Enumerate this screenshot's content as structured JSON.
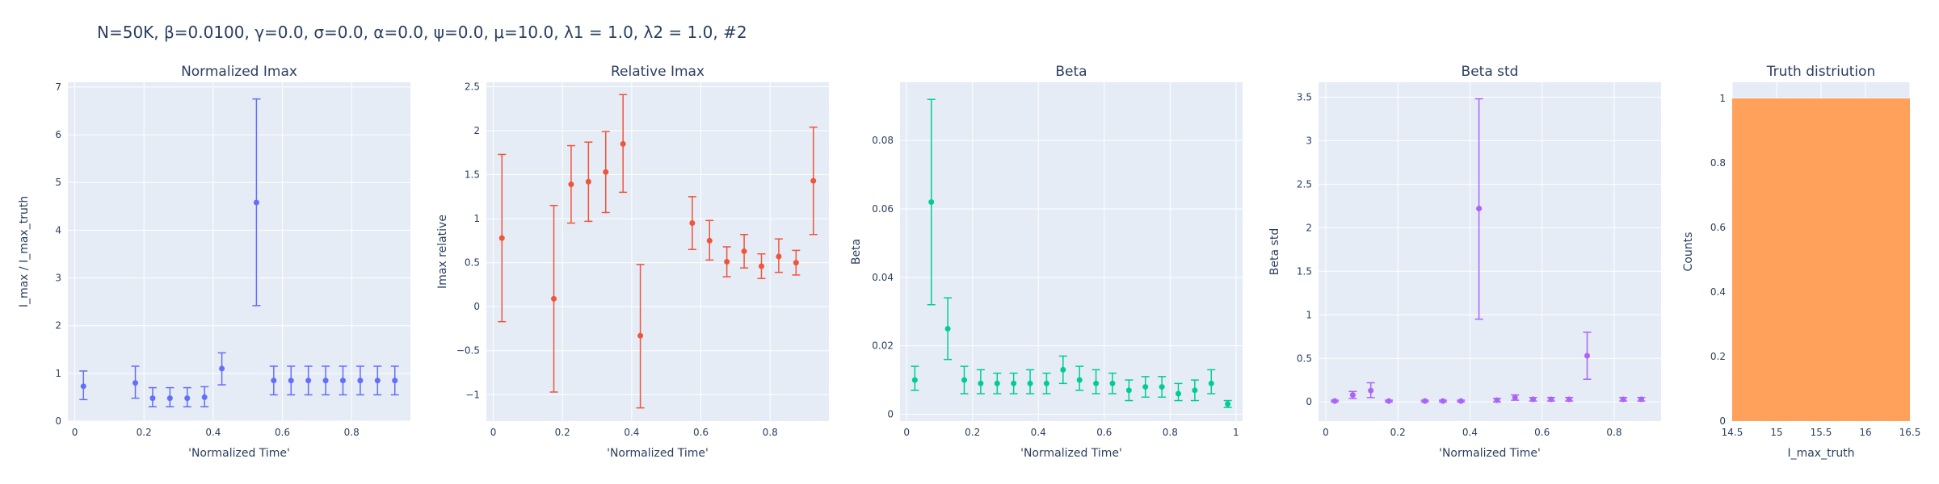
{
  "figure_title": "N=50K, β=0.0100, γ=0.0, σ=0.0,  α=0.0, ψ=0.0, μ=10.0, λ1 = 1.0, λ2 = 1.0, #2",
  "colors": {
    "plot_bg": "#e5ecf6",
    "grid": "#ffffff",
    "text": "#2a3f5f",
    "series": [
      "#636efa",
      "#ef553b",
      "#00cc96",
      "#ab63fa",
      "#ffa15a"
    ]
  },
  "chart_data": [
    {
      "type": "scatter",
      "title": "Normalized Imax",
      "xlabel": "'Normalized Time'",
      "ylabel": "I_max / I_max_truth",
      "xlim": [
        -0.02,
        0.97
      ],
      "ylim": [
        0,
        7.1
      ],
      "xticks": [
        0,
        0.2,
        0.4,
        0.6,
        0.8
      ],
      "xticklabels": [
        "0",
        "0.2",
        "0.4",
        "0.6",
        "0.8"
      ],
      "yticks": [
        0,
        1,
        2,
        3,
        4,
        5,
        6,
        7
      ],
      "yticklabels": [
        "0",
        "1",
        "2",
        "3",
        "4",
        "5",
        "6",
        "7"
      ],
      "grid": true,
      "error_bars": true,
      "x": [
        0.025,
        0.175,
        0.225,
        0.275,
        0.325,
        0.375,
        0.425,
        0.525,
        0.575,
        0.625,
        0.675,
        0.725,
        0.775,
        0.825,
        0.875,
        0.925
      ],
      "y": [
        0.73,
        0.8,
        0.48,
        0.48,
        0.48,
        0.5,
        1.1,
        4.58,
        0.85,
        0.85,
        0.85,
        0.85,
        0.85,
        0.85,
        0.85,
        0.85
      ],
      "y_low": [
        0.45,
        0.48,
        0.3,
        0.3,
        0.3,
        0.3,
        0.76,
        2.42,
        0.55,
        0.55,
        0.55,
        0.55,
        0.55,
        0.55,
        0.55,
        0.55
      ],
      "y_high": [
        1.05,
        1.15,
        0.7,
        0.7,
        0.7,
        0.72,
        1.43,
        6.75,
        1.15,
        1.15,
        1.15,
        1.15,
        1.15,
        1.15,
        1.15,
        1.15
      ]
    },
    {
      "type": "scatter",
      "title": "Relative Imax",
      "xlabel": "'Normalized Time'",
      "ylabel": "Imax relative",
      "xlim": [
        -0.02,
        0.97
      ],
      "ylim": [
        -1.3,
        2.55
      ],
      "xticks": [
        0,
        0.2,
        0.4,
        0.6,
        0.8
      ],
      "xticklabels": [
        "0",
        "0.2",
        "0.4",
        "0.6",
        "0.8"
      ],
      "yticks": [
        -1,
        -0.5,
        0,
        0.5,
        1,
        1.5,
        2,
        2.5
      ],
      "yticklabels": [
        "−1",
        "−0.5",
        "0",
        "0.5",
        "1",
        "1.5",
        "2",
        "2.5"
      ],
      "grid": true,
      "error_bars": true,
      "x": [
        0.025,
        0.175,
        0.225,
        0.275,
        0.325,
        0.375,
        0.425,
        0.575,
        0.625,
        0.675,
        0.725,
        0.775,
        0.825,
        0.875,
        0.925
      ],
      "y": [
        0.78,
        0.09,
        1.39,
        1.42,
        1.53,
        1.85,
        -0.33,
        0.95,
        0.75,
        0.51,
        0.63,
        0.46,
        0.57,
        0.5,
        1.43
      ],
      "y_low": [
        -0.17,
        -0.97,
        0.95,
        0.97,
        1.07,
        1.3,
        -1.15,
        0.65,
        0.53,
        0.34,
        0.44,
        0.32,
        0.39,
        0.36,
        0.82
      ],
      "y_high": [
        1.73,
        1.15,
        1.83,
        1.87,
        1.99,
        2.41,
        0.48,
        1.25,
        0.98,
        0.68,
        0.82,
        0.6,
        0.77,
        0.64,
        2.04
      ]
    },
    {
      "type": "scatter",
      "title": "Beta",
      "xlabel": "'Normalized Time'",
      "ylabel": "Beta",
      "xlim": [
        -0.02,
        1.02
      ],
      "ylim": [
        -0.002,
        0.097
      ],
      "xticks": [
        0,
        0.2,
        0.4,
        0.6,
        0.8,
        1
      ],
      "xticklabels": [
        "0",
        "0.2",
        "0.4",
        "0.6",
        "0.8",
        "1"
      ],
      "yticks": [
        0,
        0.02,
        0.04,
        0.06,
        0.08
      ],
      "yticklabels": [
        "0",
        "0.02",
        "0.04",
        "0.06",
        "0.08"
      ],
      "grid": true,
      "error_bars": true,
      "x": [
        0.025,
        0.075,
        0.125,
        0.175,
        0.225,
        0.275,
        0.325,
        0.375,
        0.425,
        0.475,
        0.525,
        0.575,
        0.625,
        0.675,
        0.725,
        0.775,
        0.825,
        0.875,
        0.925,
        0.975
      ],
      "y": [
        0.01,
        0.062,
        0.025,
        0.01,
        0.009,
        0.009,
        0.009,
        0.009,
        0.009,
        0.013,
        0.01,
        0.009,
        0.009,
        0.007,
        0.008,
        0.008,
        0.006,
        0.007,
        0.009,
        0.003
      ],
      "y_low": [
        0.007,
        0.032,
        0.016,
        0.006,
        0.006,
        0.006,
        0.006,
        0.006,
        0.006,
        0.009,
        0.007,
        0.006,
        0.006,
        0.004,
        0.005,
        0.005,
        0.004,
        0.004,
        0.006,
        0.002
      ],
      "y_high": [
        0.014,
        0.092,
        0.034,
        0.014,
        0.013,
        0.012,
        0.012,
        0.013,
        0.012,
        0.017,
        0.014,
        0.013,
        0.012,
        0.01,
        0.011,
        0.011,
        0.009,
        0.01,
        0.013,
        0.004
      ]
    },
    {
      "type": "scatter",
      "title": "Beta std",
      "xlabel": "'Normalized Time'",
      "ylabel": "Beta std",
      "xlim": [
        -0.02,
        0.93
      ],
      "ylim": [
        -0.22,
        3.67
      ],
      "xticks": [
        0,
        0.2,
        0.4,
        0.6,
        0.8
      ],
      "xticklabels": [
        "0",
        "0.2",
        "0.4",
        "0.6",
        "0.8"
      ],
      "yticks": [
        0,
        0.5,
        1,
        1.5,
        2,
        2.5,
        3,
        3.5
      ],
      "yticklabels": [
        "0",
        "0.5",
        "1",
        "1.5",
        "2",
        "2.5",
        "3",
        "3.5"
      ],
      "grid": true,
      "error_bars": true,
      "x": [
        0.025,
        0.075,
        0.125,
        0.175,
        0.275,
        0.325,
        0.375,
        0.425,
        0.475,
        0.525,
        0.575,
        0.625,
        0.675,
        0.725,
        0.825,
        0.875
      ],
      "y": [
        0.01,
        0.08,
        0.13,
        0.01,
        0.01,
        0.01,
        0.01,
        2.22,
        0.02,
        0.05,
        0.03,
        0.03,
        0.03,
        0.53,
        0.03,
        0.03
      ],
      "y_low": [
        0.0,
        0.04,
        0.05,
        0.0,
        0.0,
        0.0,
        0.0,
        0.95,
        0.0,
        0.02,
        0.01,
        0.01,
        0.01,
        0.26,
        0.01,
        0.01
      ],
      "y_high": [
        0.02,
        0.12,
        0.22,
        0.02,
        0.02,
        0.02,
        0.02,
        3.48,
        0.04,
        0.08,
        0.05,
        0.05,
        0.05,
        0.8,
        0.05,
        0.05
      ]
    },
    {
      "type": "bar",
      "title": "Truth distriution",
      "xlabel": "I_max_truth",
      "ylabel": "Counts",
      "xlim": [
        14.5,
        16.5
      ],
      "ylim": [
        0,
        1.05
      ],
      "xticks": [
        14.5,
        15,
        15.5,
        16,
        16.5
      ],
      "xticklabels": [
        "14.5",
        "15",
        "15.5",
        "16",
        "16.5"
      ],
      "yticks": [
        0,
        0.2,
        0.4,
        0.6,
        0.8,
        1
      ],
      "yticklabels": [
        "0",
        "0.2",
        "0.4",
        "0.6",
        "0.8",
        "1"
      ],
      "grid": true,
      "bins": [
        [
          14.5,
          16.5
        ]
      ],
      "values": [
        1
      ]
    }
  ]
}
